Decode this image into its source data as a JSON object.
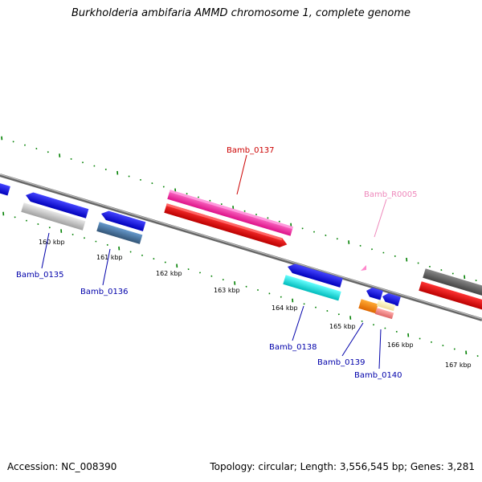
{
  "title": "Burkholderia ambifaria AMMD chromosome 1, complete genome",
  "footer": {
    "accession": "Accession: NC_008390",
    "stats": "Topology: circular; Length: 3,556,545 bp; Genes: 3,281"
  },
  "colors": {
    "label_blue": "#0000aa",
    "label_red": "#cc0000",
    "label_pink": "#ee88bb",
    "tick_green": "#008000",
    "backbone": "#888888"
  },
  "scale_labels": [
    "160 kbp",
    "161 kbp",
    "162 kbp",
    "163 kbp",
    "164 kbp",
    "165 kbp",
    "166 kbp",
    "167 kbp"
  ],
  "genes": [
    {
      "name": "Bamb_0135",
      "color": "label_blue"
    },
    {
      "name": "Bamb_0136",
      "color": "label_blue"
    },
    {
      "name": "Bamb_0137",
      "color": "label_red"
    },
    {
      "name": "Bamb_R0005",
      "color": "label_pink"
    },
    {
      "name": "Bamb_0138",
      "color": "label_blue"
    },
    {
      "name": "Bamb_0139",
      "color": "label_blue"
    },
    {
      "name": "Bamb_0140",
      "color": "label_blue"
    }
  ]
}
